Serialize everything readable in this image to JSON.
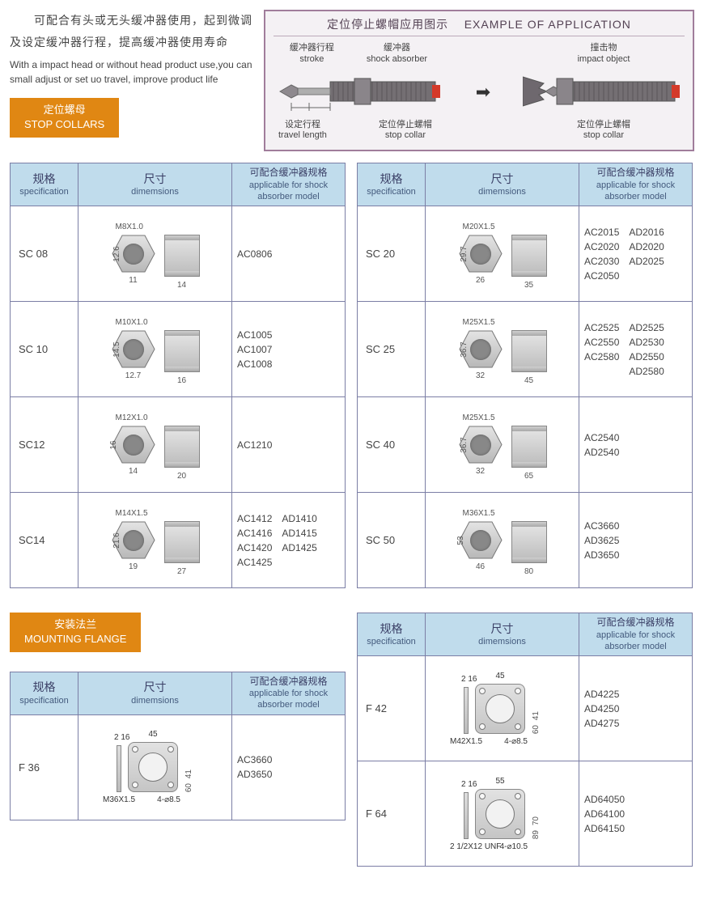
{
  "intro": {
    "cn": "　　可配合有头或无头缓冲器使用，起到微调及设定缓冲器行程，提高缓冲器使用寿命",
    "en": "With a impact head or without head product use,you can small adjust or set uo travel, improve product life"
  },
  "section_stop_collars": {
    "cn": "定位螺母",
    "en": "STOP COLLARS"
  },
  "section_mounting_flange": {
    "cn": "安装法兰",
    "en": "MOUNTING FLANGE"
  },
  "app_panel": {
    "title_cn": "定位停止螺帽应用图示",
    "title_en": "EXAMPLE OF APPLICATION",
    "labels": {
      "stroke_cn": "缓冲器行程",
      "stroke_en": "stroke",
      "absorber_cn": "缓冲器",
      "absorber_en": "shock absorber",
      "impact_cn": "撞击物",
      "impact_en": "impact object",
      "travel_cn": "设定行程",
      "travel_en": "travel length",
      "stop_cn": "定位停止螺帽",
      "stop_en": "stop collar"
    }
  },
  "headers": {
    "spec_cn": "规格",
    "spec_en": "specification",
    "dim_cn": "尺寸",
    "dim_en": "dimemsions",
    "model_cn": "可配合缓冲器规格",
    "model_en": "applicable for shock absorber model"
  },
  "colors": {
    "section_tag": "#e08713",
    "table_header_bg": "#c0dcec",
    "border": "#7b7ea5",
    "panel_border": "#a07d9b",
    "panel_bg": "#f4f1f4"
  },
  "stop_collars_left": [
    {
      "spec": "SC 08",
      "thread": "M8X1.0",
      "hex_w": "11",
      "hex_h": "12.6",
      "nut_w": "14",
      "models": [
        [
          "AC0806"
        ]
      ]
    },
    {
      "spec": "SC 10",
      "thread": "M10X1.0",
      "hex_w": "12.7",
      "hex_h": "14.5",
      "nut_w": "16",
      "models": [
        [
          "AC1005",
          "AC1007",
          "AC1008"
        ]
      ]
    },
    {
      "spec": "SC12",
      "thread": "M12X1.0",
      "hex_w": "14",
      "hex_h": "16",
      "nut_w": "20",
      "models": [
        [
          "AC1210"
        ]
      ]
    },
    {
      "spec": "SC14",
      "thread": "M14X1.5",
      "hex_w": "19",
      "hex_h": "21.6",
      "nut_w": "27",
      "models": [
        [
          "AC1412",
          "AC1416",
          "AC1420",
          "AC1425"
        ],
        [
          "AD1410",
          "AD1415",
          "AD1425"
        ]
      ]
    }
  ],
  "stop_collars_right": [
    {
      "spec": "SC 20",
      "thread": "M20X1.5",
      "hex_w": "26",
      "hex_h": "29.7",
      "nut_w": "35",
      "models": [
        [
          "AC2015",
          "AC2020",
          "AC2030",
          "AC2050"
        ],
        [
          "AD2016",
          "AD2020",
          "AD2025"
        ]
      ]
    },
    {
      "spec": "SC 25",
      "thread": "M25X1.5",
      "hex_w": "32",
      "hex_h": "36.7",
      "nut_w": "45",
      "models": [
        [
          "AC2525",
          "AC2550",
          "AC2580"
        ],
        [
          "AD2525",
          "AD2530",
          "AD2550",
          "AD2580"
        ]
      ]
    },
    {
      "spec": "SC 40",
      "thread": "M25X1.5",
      "hex_w": "32",
      "hex_h": "36.7",
      "nut_w": "65",
      "models": [
        [
          "AC2540",
          "AD2540"
        ]
      ]
    },
    {
      "spec": "SC 50",
      "thread": "M36X1.5",
      "hex_w": "46",
      "hex_h": "53",
      "nut_w": "80",
      "models": [
        [
          "AC3660",
          "AD3625",
          "AD3650"
        ]
      ]
    }
  ],
  "flange_right": [
    {
      "spec": "F 42",
      "strip_top": "16",
      "strip_left": "2",
      "thread": "M42X1.5",
      "plate_top": "45",
      "inner1": "45",
      "inner2": "41",
      "outer": "60",
      "hole": "4-⌀8.5",
      "models": [
        "AD4225",
        "AD4250",
        "AD4275"
      ]
    },
    {
      "spec": "F 64",
      "strip_top": "16",
      "strip_left": "2",
      "thread": "2 1/2X12 UNF",
      "plate_top": "55",
      "inner1": "55",
      "inner2": "70",
      "outer": "89",
      "hole": "4-⌀10.5",
      "models": [
        "AD64050",
        "AD64100",
        "AD64150"
      ]
    }
  ],
  "flange_left": [
    {
      "spec": "F 36",
      "strip_top": "16",
      "strip_left": "2",
      "thread": "M36X1.5",
      "plate_top": "45",
      "inner1": "45",
      "inner2": "41",
      "outer": "60",
      "hole": "4-⌀8.5",
      "models": [
        "AC3660",
        "AD3650"
      ]
    }
  ]
}
